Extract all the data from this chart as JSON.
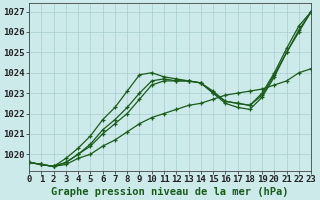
{
  "title": "Graphe pression niveau de la mer (hPa)",
  "xlabel_ticks": [
    0,
    1,
    2,
    3,
    4,
    5,
    6,
    7,
    8,
    9,
    10,
    11,
    12,
    13,
    14,
    15,
    16,
    17,
    18,
    19,
    20,
    21,
    22,
    23
  ],
  "ylim": [
    1019.2,
    1027.4
  ],
  "yticks": [
    1020,
    1021,
    1022,
    1023,
    1024,
    1025,
    1026,
    1027
  ],
  "xlim": [
    0,
    23
  ],
  "background_color": "#cceaea",
  "grid_color": "#aacccc",
  "line_color": "#1a5c1a",
  "series": [
    [
      1019.6,
      1019.5,
      1019.4,
      1019.5,
      1019.8,
      1020.0,
      1020.4,
      1020.7,
      1021.1,
      1021.5,
      1021.8,
      1022.0,
      1022.2,
      1022.4,
      1022.5,
      1022.7,
      1022.9,
      1023.0,
      1023.1,
      1023.2,
      1023.4,
      1023.6,
      1024.0,
      1024.2
    ],
    [
      1019.6,
      1019.5,
      1019.4,
      1019.6,
      1020.0,
      1020.4,
      1021.0,
      1021.5,
      1022.0,
      1022.7,
      1023.4,
      1023.6,
      1023.6,
      1023.6,
      1023.5,
      1023.0,
      1022.6,
      1022.5,
      1022.4,
      1022.9,
      1023.9,
      1025.0,
      1026.1,
      1027.0
    ],
    [
      1019.6,
      1019.5,
      1019.4,
      1019.8,
      1020.3,
      1020.9,
      1021.7,
      1022.3,
      1023.1,
      1023.9,
      1024.0,
      1023.8,
      1023.7,
      1023.6,
      1023.5,
      1023.1,
      1022.6,
      1022.5,
      1022.4,
      1023.0,
      1024.0,
      1025.2,
      1026.3,
      1027.0
    ],
    [
      1019.6,
      1019.5,
      1019.4,
      1019.6,
      1020.0,
      1020.5,
      1021.2,
      1021.7,
      1022.3,
      1023.0,
      1023.6,
      1023.7,
      1023.6,
      1023.6,
      1023.5,
      1023.0,
      1022.5,
      1022.3,
      1022.2,
      1022.8,
      1023.8,
      1025.0,
      1026.0,
      1027.0
    ]
  ],
  "tick_fontsize": 6.5,
  "label_fontsize": 7.5,
  "fig_width": 3.2,
  "fig_height": 2.0,
  "dpi": 100
}
